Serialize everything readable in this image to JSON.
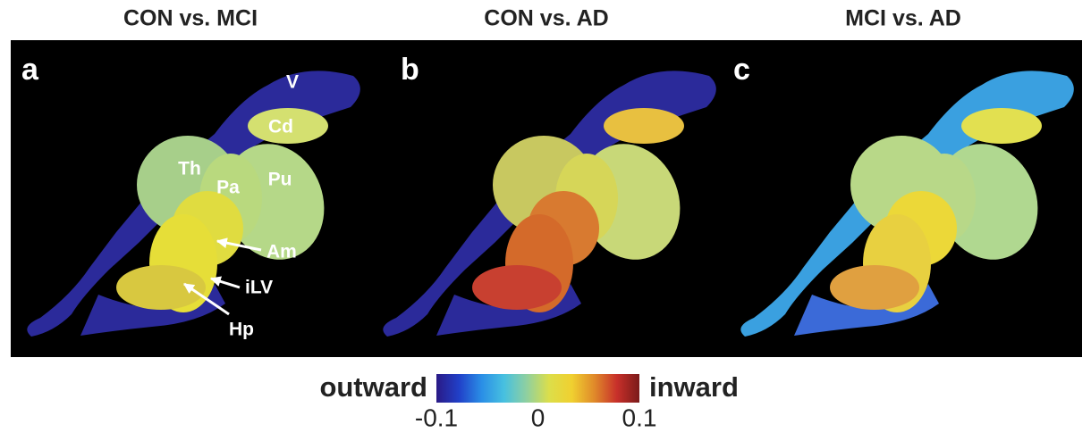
{
  "panels": [
    {
      "title": "CON vs. MCI",
      "letter": "a",
      "labels": [
        "V",
        "Cd",
        "Th",
        "Pa",
        "Pu",
        "Am",
        "iLV",
        "Hp"
      ]
    },
    {
      "title": "CON vs. AD",
      "letter": "b"
    },
    {
      "title": "MCI vs. AD",
      "letter": "c"
    }
  ],
  "colorbar": {
    "left_label": "outward",
    "right_label": "inward",
    "lim": [
      -0.1,
      0.1
    ],
    "ticks": [
      -0.1,
      0,
      0.1
    ],
    "colors": [
      "#2a1a86",
      "#2140c8",
      "#2a8ee6",
      "#47c0e0",
      "#8fd0a0",
      "#dcde4a",
      "#f0d030",
      "#e08a2a",
      "#c8302a",
      "#7a1a1a"
    ]
  }
}
